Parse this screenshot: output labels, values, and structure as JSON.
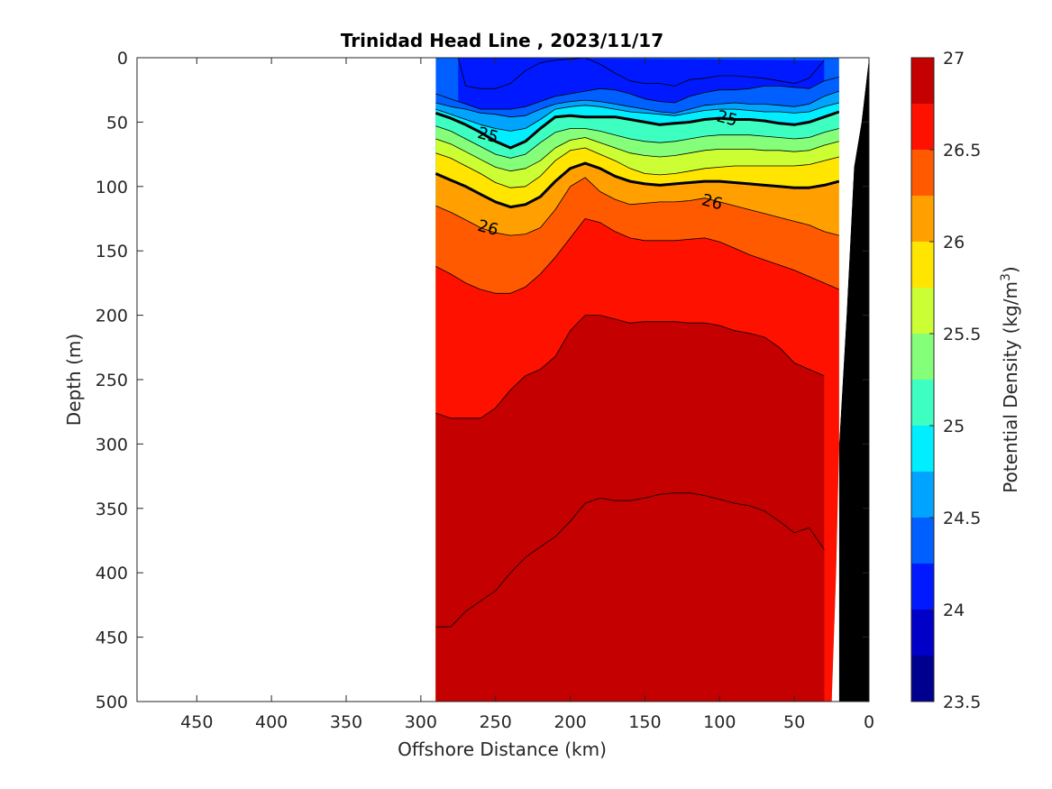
{
  "chart_data": {
    "type": "heatmap",
    "subtype": "filled-contour-section",
    "title": "Trinidad Head Line , 2023/11/17",
    "xlabel": "Offshore Distance (km)",
    "ylabel": "Depth (m)",
    "xlim": [
      490,
      0
    ],
    "ylim": [
      0,
      500
    ],
    "x_direction": "reversed",
    "y_direction": "reversed",
    "grid": false,
    "x_ticks": [
      "450",
      "400",
      "350",
      "300",
      "250",
      "200",
      "150",
      "100",
      "50",
      "0"
    ],
    "y_ticks": [
      "0",
      "50",
      "100",
      "150",
      "200",
      "250",
      "300",
      "350",
      "400",
      "450",
      "500"
    ],
    "colorbar": {
      "label": "Potential Density (kg/m",
      "label_superscript": "3",
      "label_suffix": ")",
      "range": [
        23.5,
        27
      ],
      "ticks": [
        "23.5",
        "24",
        "24.5",
        "25",
        "25.5",
        "26",
        "26.5",
        "27"
      ],
      "levels": [
        23.5,
        23.75,
        24,
        24.25,
        24.5,
        24.75,
        25,
        25.25,
        25.5,
        25.75,
        26,
        26.25,
        26.5,
        26.75,
        27
      ],
      "colors": [
        "#00008f",
        "#0000c8",
        "#0019ff",
        "#0060ff",
        "#00a4ff",
        "#00eeff",
        "#3dffc1",
        "#85ff7a",
        "#ccff33",
        "#ffe500",
        "#ffa000",
        "#ff5a00",
        "#ff1100",
        "#c40000"
      ]
    },
    "data_extent_km": [
      290,
      20
    ],
    "contour_lines": [
      {
        "level": 24.0,
        "x": [
          275,
          270,
          260,
          250,
          240,
          230,
          220,
          210,
          200,
          190,
          180,
          170,
          160,
          150,
          140,
          130,
          120,
          110,
          100,
          90,
          80,
          70,
          60,
          50,
          40,
          30
        ],
        "y": [
          0,
          22,
          24,
          24,
          20,
          10,
          4,
          2,
          1,
          0,
          5,
          12,
          18,
          20,
          20,
          22,
          17,
          16,
          14,
          14,
          15,
          16,
          18,
          20,
          16,
          2
        ]
      },
      {
        "level": 24.25,
        "x": [
          290,
          280,
          270,
          260,
          250,
          240,
          230,
          220,
          210,
          200,
          190,
          180,
          170,
          160,
          150,
          140,
          130,
          120,
          110,
          100,
          90,
          80,
          70,
          60,
          50,
          40,
          30,
          20
        ],
        "y": [
          28,
          32,
          36,
          40,
          40,
          40,
          38,
          34,
          30,
          28,
          26,
          24,
          25,
          28,
          32,
          34,
          35,
          30,
          27,
          25,
          25,
          24,
          22,
          22,
          23,
          24,
          18,
          15
        ]
      },
      {
        "level": 24.5,
        "x": [
          290,
          280,
          270,
          260,
          250,
          240,
          230,
          220,
          210,
          200,
          190,
          180,
          170,
          160,
          150,
          140,
          130,
          120,
          110,
          100,
          90,
          80,
          70,
          60,
          50,
          40,
          30,
          20
        ],
        "y": [
          35,
          38,
          40,
          43,
          44,
          46,
          45,
          40,
          36,
          34,
          33,
          34,
          36,
          38,
          40,
          42,
          43,
          40,
          37,
          36,
          35,
          36,
          36,
          37,
          38,
          36,
          30,
          26
        ]
      },
      {
        "level": 24.75,
        "x": [
          290,
          280,
          270,
          260,
          250,
          240,
          230,
          220,
          210,
          200,
          190,
          180,
          170,
          160,
          150,
          140,
          130,
          120,
          110,
          100,
          90,
          80,
          70,
          60,
          50,
          40,
          30,
          20
        ],
        "y": [
          40,
          44,
          48,
          52,
          55,
          57,
          55,
          48,
          40,
          38,
          37,
          38,
          40,
          42,
          43,
          44,
          45,
          43,
          41,
          40,
          40,
          41,
          42,
          42,
          43,
          42,
          38,
          35
        ]
      },
      {
        "level": 25.0,
        "x": [
          290,
          280,
          270,
          260,
          250,
          240,
          230,
          220,
          210,
          200,
          190,
          180,
          170,
          160,
          150,
          140,
          130,
          120,
          110,
          100,
          90,
          80,
          70,
          60,
          50,
          40,
          30,
          20
        ],
        "y": [
          43,
          47,
          52,
          58,
          65,
          70,
          65,
          55,
          46,
          45,
          46,
          46,
          46,
          48,
          50,
          52,
          51,
          50,
          48,
          47,
          48,
          48,
          49,
          51,
          52,
          50,
          46,
          42
        ]
      },
      {
        "level": 25.25,
        "x": [
          290,
          280,
          270,
          260,
          250,
          240,
          230,
          220,
          210,
          200,
          190,
          180,
          170,
          160,
          150,
          140,
          130,
          120,
          110,
          100,
          90,
          80,
          70,
          60,
          50,
          40,
          30,
          20
        ],
        "y": [
          53,
          57,
          63,
          69,
          75,
          78,
          75,
          66,
          58,
          55,
          55,
          57,
          60,
          63,
          65,
          66,
          65,
          63,
          61,
          60,
          60,
          60,
          61,
          62,
          63,
          62,
          58,
          55
        ]
      },
      {
        "level": 25.5,
        "x": [
          290,
          280,
          270,
          260,
          250,
          240,
          230,
          220,
          210,
          200,
          190,
          180,
          170,
          160,
          150,
          140,
          130,
          120,
          110,
          100,
          90,
          80,
          70,
          60,
          50,
          40,
          30,
          20
        ],
        "y": [
          63,
          67,
          73,
          79,
          85,
          88,
          86,
          80,
          70,
          64,
          62,
          66,
          70,
          74,
          76,
          77,
          76,
          74,
          72,
          71,
          71,
          71,
          72,
          72,
          73,
          72,
          68,
          65
        ]
      },
      {
        "level": 25.75,
        "x": [
          290,
          280,
          270,
          260,
          250,
          240,
          230,
          220,
          210,
          200,
          190,
          180,
          170,
          160,
          150,
          140,
          130,
          120,
          110,
          100,
          90,
          80,
          70,
          60,
          50,
          40,
          30,
          20
        ],
        "y": [
          74,
          78,
          84,
          90,
          97,
          101,
          100,
          92,
          80,
          72,
          70,
          75,
          80,
          86,
          90,
          91,
          90,
          88,
          86,
          85,
          84,
          84,
          84,
          84,
          84,
          83,
          80,
          77
        ]
      },
      {
        "level": 26.0,
        "x": [
          290,
          280,
          270,
          260,
          250,
          240,
          230,
          220,
          210,
          200,
          190,
          180,
          170,
          160,
          150,
          140,
          130,
          120,
          110,
          100,
          90,
          80,
          70,
          60,
          50,
          40,
          30,
          20
        ],
        "y": [
          90,
          95,
          100,
          106,
          112,
          116,
          114,
          108,
          96,
          86,
          82,
          86,
          92,
          96,
          98,
          99,
          98,
          97,
          96,
          96,
          97,
          98,
          99,
          100,
          101,
          101,
          99,
          96
        ]
      },
      {
        "level": 26.25,
        "x": [
          290,
          280,
          270,
          260,
          250,
          240,
          230,
          220,
          210,
          200,
          190,
          180,
          170,
          160,
          150,
          140,
          130,
          120,
          110,
          100,
          90,
          80,
          70,
          60,
          50,
          40,
          30,
          20
        ],
        "y": [
          115,
          120,
          126,
          132,
          136,
          138,
          137,
          132,
          118,
          100,
          93,
          104,
          110,
          114,
          113,
          112,
          112,
          111,
          109,
          112,
          115,
          118,
          121,
          124,
          127,
          130,
          135,
          138
        ]
      },
      {
        "level": 26.5,
        "x": [
          290,
          280,
          270,
          260,
          250,
          240,
          230,
          220,
          210,
          200,
          190,
          180,
          170,
          160,
          150,
          140,
          130,
          120,
          110,
          100,
          90,
          80,
          70,
          60,
          50,
          40,
          30,
          20
        ],
        "y": [
          162,
          168,
          175,
          180,
          183,
          183,
          178,
          168,
          155,
          140,
          125,
          128,
          135,
          140,
          142,
          142,
          142,
          141,
          140,
          143,
          148,
          153,
          157,
          161,
          165,
          170,
          175,
          180
        ]
      },
      {
        "level": 26.75,
        "x": [
          290,
          280,
          270,
          260,
          250,
          240,
          230,
          220,
          210,
          200,
          190,
          180,
          170,
          160,
          150,
          140,
          130,
          120,
          110,
          100,
          90,
          80,
          70,
          60,
          50,
          40,
          30
        ],
        "y": [
          276,
          280,
          280,
          280,
          272,
          258,
          247,
          242,
          232,
          212,
          200,
          200,
          203,
          206,
          205,
          205,
          205,
          206,
          206,
          208,
          212,
          214,
          217,
          225,
          237,
          242,
          247
        ]
      },
      {
        "level": 27.0,
        "x": [
          290,
          280,
          270,
          260,
          250,
          240,
          230,
          220,
          210,
          200,
          190,
          180,
          170,
          160,
          150,
          140,
          130,
          120,
          110,
          100,
          90,
          80,
          70,
          60,
          50,
          40,
          30
        ],
        "y": [
          442,
          442,
          430,
          422,
          414,
          400,
          388,
          380,
          372,
          360,
          346,
          342,
          344,
          344,
          342,
          339,
          338,
          338,
          340,
          343,
          346,
          348,
          352,
          360,
          369,
          365,
          382
        ]
      }
    ],
    "contour_labels": [
      {
        "text": "25",
        "x": 255,
        "y": 60
      },
      {
        "text": "25",
        "x": 95,
        "y": 47
      },
      {
        "text": "26",
        "x": 255,
        "y": 132
      },
      {
        "text": "26",
        "x": 105,
        "y": 112
      }
    ],
    "bathymetry": {
      "x": [
        0,
        5,
        10,
        15,
        20,
        22,
        25
      ],
      "y": [
        0,
        50,
        85,
        200,
        300,
        400,
        500
      ]
    }
  }
}
